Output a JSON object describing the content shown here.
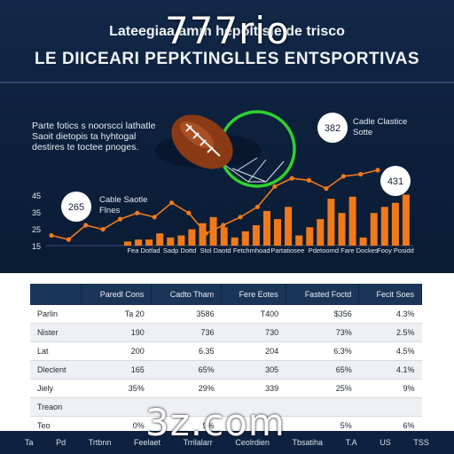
{
  "header": {
    "title_line1": "Lateegiaa amm hepoltisle de trisco",
    "title_line2": "LE DIICEARI PEPKTINGLLES ENTSPORTIVAS"
  },
  "watermarks": {
    "top": "777rio",
    "bottom": "3z.com"
  },
  "hero_note": [
    "Parte fotics s noorscci lathatle",
    "Saoit dietopis ta hyhtogal",
    "destires te toctee pnoges."
  ],
  "colors": {
    "bar": "#f07a1a",
    "line": "#f07a1a",
    "ring": "#2ed12e",
    "background": "#0f2443"
  },
  "chart_data": {
    "type": "bar",
    "title": "",
    "xlabel": "",
    "ylabel": "",
    "y_tick_labels": [
      "15",
      "25",
      "35",
      "45"
    ],
    "x_tick_labels": [
      "Fea Dotfad",
      "Sadp Dottd",
      "Stol Daotd",
      "Fetchmhoad",
      "Partatiosee",
      "Pdetoomd",
      "Fare Dockes",
      "Fooy Posidd"
    ],
    "bars": [
      2,
      3,
      3,
      6,
      4,
      5,
      8,
      11,
      14,
      9,
      4,
      7,
      10,
      17,
      13,
      19,
      5,
      9,
      13,
      23,
      16,
      24,
      4,
      16,
      19,
      21,
      25
    ],
    "line": [
      5,
      3,
      10,
      8,
      13,
      16,
      14,
      21,
      16,
      6,
      10,
      14,
      19,
      29,
      33,
      32,
      28,
      34,
      35,
      37
    ],
    "callouts": [
      {
        "value": "265",
        "label_lines": [
          "Cable Saotle",
          "Flnes"
        ]
      },
      {
        "value": "382",
        "label_lines": [
          "Cadle Clastice",
          "Sotte"
        ]
      },
      {
        "value": "431",
        "label_lines": []
      }
    ]
  },
  "table": {
    "headers": [
      "",
      "Paredl Cons",
      "Cadto Tham",
      "Fere Eotes",
      "Fasted Foctd",
      "Fecit Soes"
    ],
    "rows": [
      [
        "Parlin",
        "Ta 20",
        "3586",
        "T400",
        "$356",
        "4.3%"
      ],
      [
        "Nister",
        "190",
        "736",
        "730",
        "73%",
        "2.5%"
      ],
      [
        "Lat",
        "200",
        "6.35",
        "204",
        "6.3%",
        "4.5%"
      ],
      [
        "Dleclent",
        "165",
        "65%",
        "305",
        "65%",
        "4.1%"
      ],
      [
        "Jiely",
        "35%",
        "29%",
        "339",
        "25%",
        "9%"
      ],
      [
        "Treaon",
        "",
        "",
        "",
        "",
        ""
      ],
      [
        "Teo",
        "0%",
        "9%",
        "",
        "5%",
        "6%"
      ]
    ]
  },
  "footer": {
    "items": [
      "Ta",
      "Pd",
      "Trtbnn",
      "Feelaet",
      "Trrilalarr",
      "Ceolrdien",
      "Tbsatiha",
      "T.A",
      "US",
      "TSS"
    ]
  }
}
